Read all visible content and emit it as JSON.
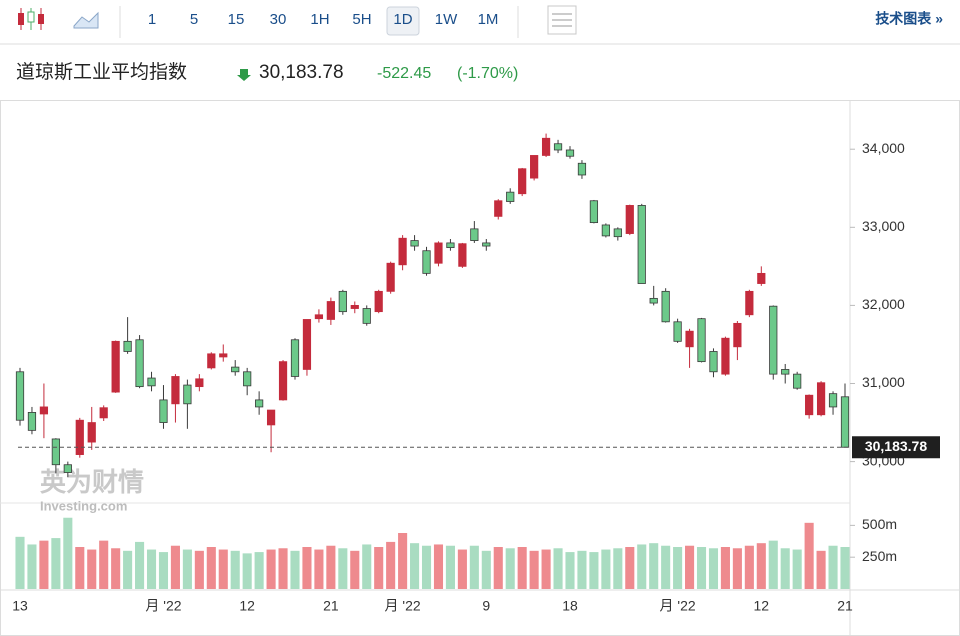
{
  "toolbar": {
    "intervals": [
      "1",
      "5",
      "15",
      "30",
      "1H",
      "5H",
      "1D",
      "1W",
      "1M"
    ],
    "active": "1D",
    "link": "技术图表 »"
  },
  "header": {
    "title": "道琼斯工业平均指数",
    "price": "30,183.78",
    "change": "-522.45",
    "change_pct": "(-1.70%)"
  },
  "chart_data": {
    "type": "candlestick",
    "watermark": [
      "英为财情",
      "Investing.com"
    ],
    "categories": [
      "13",
      null,
      null,
      null,
      null,
      null,
      null,
      null,
      null,
      null,
      null,
      null,
      "月 '22",
      null,
      null,
      null,
      null,
      null,
      null,
      "12",
      null,
      null,
      null,
      null,
      null,
      null,
      "21",
      null,
      null,
      null,
      null,
      null,
      "月 '22",
      null,
      null,
      null,
      null,
      null,
      null,
      "9",
      null,
      null,
      null,
      null,
      null,
      null,
      "18",
      null,
      null,
      null,
      null,
      null,
      null,
      null,
      null,
      "月 '22",
      null,
      null,
      null,
      null,
      null,
      null,
      "12",
      null,
      null,
      null,
      null,
      null,
      null,
      "21"
    ],
    "ohlc": [
      [
        31150,
        31200,
        30460,
        30530
      ],
      [
        30630,
        30700,
        30350,
        30400
      ],
      [
        30610,
        31000,
        30300,
        30700
      ],
      [
        30290,
        30300,
        29850,
        29960
      ],
      [
        29960,
        30000,
        29800,
        29860
      ],
      [
        30090,
        30560,
        30050,
        30530
      ],
      [
        30250,
        30700,
        30150,
        30500
      ],
      [
        30560,
        30720,
        30520,
        30690
      ],
      [
        30890,
        31550,
        30880,
        31540
      ],
      [
        31540,
        31850,
        31380,
        31410
      ],
      [
        31560,
        31620,
        30940,
        30960
      ],
      [
        31070,
        31150,
        30900,
        30970
      ],
      [
        30790,
        30980,
        30420,
        30500
      ],
      [
        30740,
        31120,
        30500,
        31090
      ],
      [
        30980,
        31050,
        30420,
        30740
      ],
      [
        30960,
        31120,
        30900,
        31060
      ],
      [
        31200,
        31400,
        31180,
        31380
      ],
      [
        31340,
        31500,
        31280,
        31380
      ],
      [
        31210,
        31300,
        31100,
        31150
      ],
      [
        31150,
        31200,
        30850,
        30970
      ],
      [
        30790,
        30900,
        30600,
        30700
      ],
      [
        30470,
        30660,
        30120,
        30660
      ],
      [
        30790,
        31300,
        30780,
        31280
      ],
      [
        31560,
        31580,
        31050,
        31090
      ],
      [
        31180,
        31820,
        31100,
        31820
      ],
      [
        31830,
        31950,
        31780,
        31880
      ],
      [
        31820,
        32100,
        31750,
        32050
      ],
      [
        32180,
        32200,
        31880,
        31920
      ],
      [
        31960,
        32050,
        31900,
        32000
      ],
      [
        31960,
        32000,
        31740,
        31770
      ],
      [
        31920,
        32200,
        31900,
        32180
      ],
      [
        32180,
        32560,
        32150,
        32540
      ],
      [
        32520,
        32900,
        32450,
        32860
      ],
      [
        32830,
        32900,
        32700,
        32760
      ],
      [
        32700,
        32750,
        32380,
        32410
      ],
      [
        32540,
        32820,
        32500,
        32800
      ],
      [
        32800,
        32850,
        32700,
        32740
      ],
      [
        32500,
        32800,
        32480,
        32790
      ],
      [
        32980,
        33080,
        32800,
        32830
      ],
      [
        32800,
        32850,
        32700,
        32760
      ],
      [
        33140,
        33360,
        33100,
        33340
      ],
      [
        33450,
        33500,
        33300,
        33330
      ],
      [
        33430,
        33760,
        33400,
        33750
      ],
      [
        33630,
        33920,
        33600,
        33920
      ],
      [
        33920,
        34200,
        33900,
        34140
      ],
      [
        34070,
        34120,
        33950,
        33990
      ],
      [
        33990,
        34040,
        33880,
        33910
      ],
      [
        33820,
        33860,
        33620,
        33670
      ],
      [
        33340,
        33350,
        33050,
        33060
      ],
      [
        33030,
        33050,
        32870,
        32890
      ],
      [
        32980,
        33000,
        32830,
        32880
      ],
      [
        32920,
        33290,
        32900,
        33280
      ],
      [
        33280,
        33300,
        32280,
        32280
      ],
      [
        32090,
        32250,
        32000,
        32030
      ],
      [
        32180,
        32220,
        31780,
        31790
      ],
      [
        31790,
        31830,
        31520,
        31540
      ],
      [
        31470,
        31700,
        31200,
        31670
      ],
      [
        31830,
        31840,
        31270,
        31280
      ],
      [
        31410,
        31450,
        31080,
        31150
      ],
      [
        31120,
        31600,
        31100,
        31580
      ],
      [
        31470,
        31800,
        31300,
        31770
      ],
      [
        31880,
        32200,
        31850,
        32180
      ],
      [
        32280,
        32500,
        32250,
        32410
      ],
      [
        31990,
        32000,
        31050,
        31120
      ],
      [
        31180,
        31250,
        31000,
        31120
      ],
      [
        31120,
        31150,
        30920,
        30940
      ],
      [
        30600,
        30860,
        30550,
        30850
      ],
      [
        30600,
        31030,
        30580,
        31010
      ],
      [
        30870,
        30900,
        30600,
        30700
      ],
      [
        30830,
        31000,
        30180,
        30183.78
      ]
    ],
    "volume": [
      410,
      350,
      380,
      400,
      560,
      330,
      310,
      380,
      320,
      300,
      370,
      310,
      290,
      340,
      310,
      300,
      330,
      310,
      300,
      280,
      290,
      310,
      320,
      300,
      330,
      310,
      340,
      320,
      300,
      350,
      330,
      370,
      440,
      360,
      340,
      350,
      340,
      310,
      340,
      300,
      330,
      320,
      330,
      300,
      310,
      320,
      290,
      300,
      290,
      310,
      320,
      330,
      350,
      360,
      340,
      330,
      340,
      330,
      320,
      330,
      320,
      340,
      360,
      380,
      320,
      310,
      520,
      300,
      340,
      330
    ],
    "up_color": "#c42b3c",
    "down_color": "#6cc98a",
    "up_volume_color": "#ee8a8e",
    "down_volume_color": "#a9dcc1",
    "ylim": [
      29470,
      34630
    ],
    "yticks": [
      {
        "value": 30000,
        "label": "30,000"
      },
      {
        "value": 31000,
        "label": "31,000"
      },
      {
        "value": 32000,
        "label": "32,000"
      },
      {
        "value": 33000,
        "label": "33,000"
      },
      {
        "value": 34000,
        "label": "34,000"
      }
    ],
    "vlim": [
      0,
      660
    ],
    "vticks": [
      {
        "value": 250,
        "label": "250m"
      },
      {
        "value": 500,
        "label": "500m"
      }
    ],
    "last_price_label": "30,183.78",
    "grid": false
  }
}
